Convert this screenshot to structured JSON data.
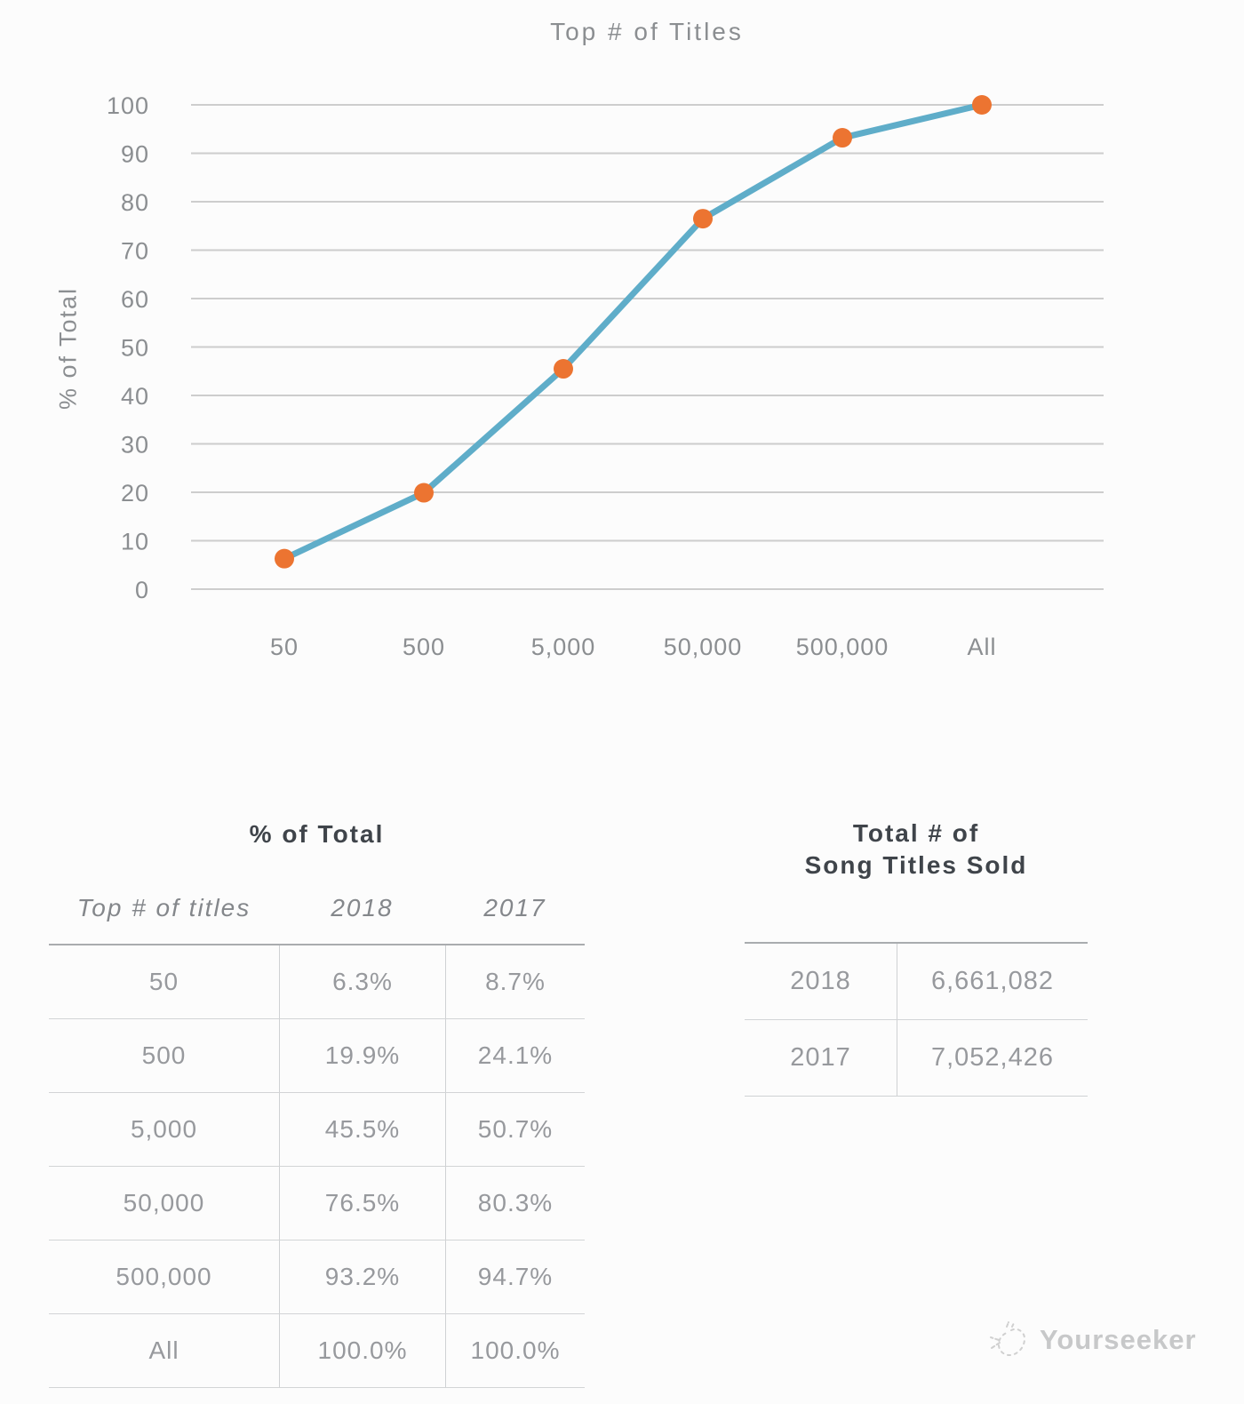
{
  "chart_data": {
    "type": "line",
    "title": "Top # of Titles",
    "ylabel": "% of Total",
    "categories": [
      "50",
      "500",
      "5,000",
      "50,000",
      "500,000",
      "All"
    ],
    "series": [
      {
        "name": "2018",
        "values": [
          6.3,
          19.9,
          45.5,
          76.5,
          93.2,
          100.0
        ]
      }
    ],
    "ylim": [
      0,
      100
    ],
    "yticks": [
      0,
      10,
      20,
      30,
      40,
      50,
      60,
      70,
      80,
      90,
      100
    ],
    "grid": true,
    "legend_position": "none",
    "line_color": "#5fadc9",
    "point_color": "#ec7431",
    "grid_color": "#cdcdcd",
    "axis_text_color": "#8b8e91"
  },
  "pct_table": {
    "title": "% of Total",
    "headers": [
      "Top # of titles",
      "2018",
      "2017"
    ],
    "rows": [
      [
        "50",
        "6.3%",
        "8.7%"
      ],
      [
        "500",
        "19.9%",
        "24.1%"
      ],
      [
        "5,000",
        "45.5%",
        "50.7%"
      ],
      [
        "50,000",
        "76.5%",
        "80.3%"
      ],
      [
        "500,000",
        "93.2%",
        "94.7%"
      ],
      [
        "All",
        "100.0%",
        "100.0%"
      ]
    ]
  },
  "totals_table": {
    "title_line1": "Total # of",
    "title_line2": "Song Titles Sold",
    "rows": [
      [
        "2018",
        "6,661,082"
      ],
      [
        "2017",
        "7,052,426"
      ]
    ]
  },
  "watermark": {
    "label": "Yourseeker"
  }
}
